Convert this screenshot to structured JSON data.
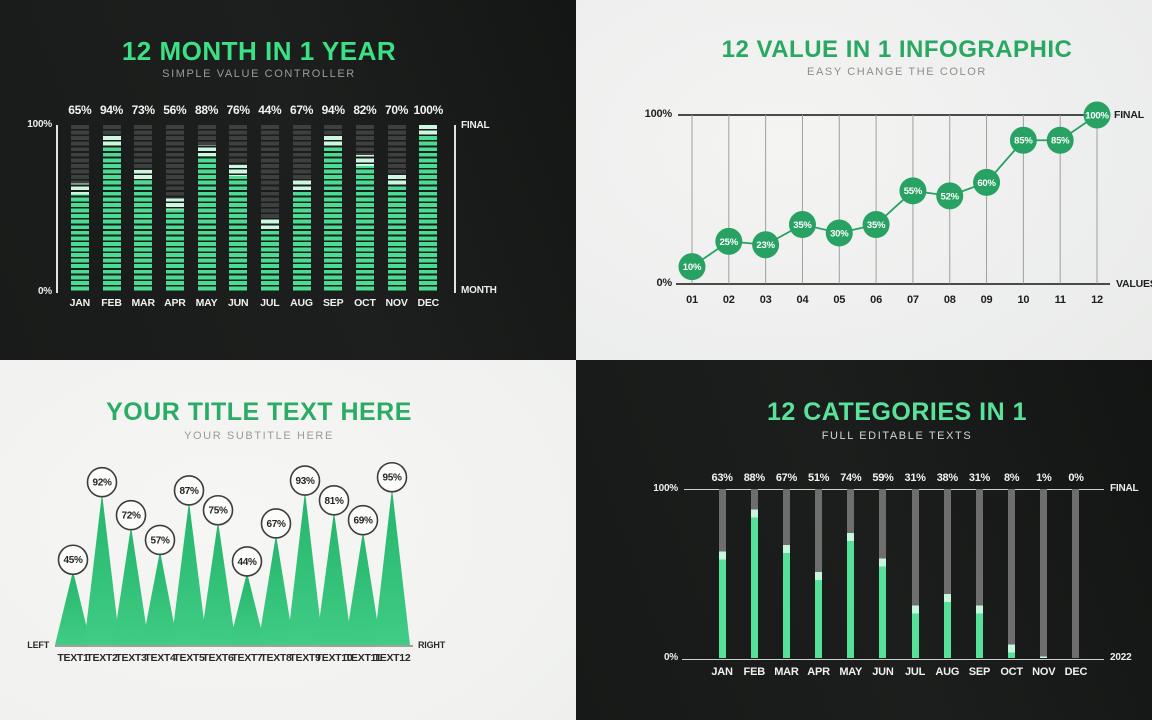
{
  "accent_colors": {
    "bright_green": "#3be184",
    "mid_green": "#28a862",
    "mint_green": "#5ae29b",
    "led_fill": "#4adc92",
    "led_cap": "#cdf8e0",
    "led_empty": "#3e403f",
    "thin_fill": "#55e298",
    "thin_cap": "#c6f7dc",
    "thin_empty": "#6e6e6e",
    "marker_green": "#28a263",
    "triangle_top": "#26b56c",
    "triangle_bottom": "#40cc84"
  },
  "chart_data": [
    {
      "type": "bar",
      "variant": "segmented-led-bars",
      "title": "12 MONTH IN 1 YEAR",
      "subtitle": "SIMPLE VALUE CONTROLLER",
      "categories": [
        "JAN",
        "FEB",
        "MAR",
        "APR",
        "MAY",
        "JUN",
        "JUL",
        "AUG",
        "SEP",
        "OCT",
        "NOV",
        "DEC"
      ],
      "values": [
        65,
        94,
        73,
        56,
        88,
        76,
        44,
        67,
        94,
        82,
        70,
        100
      ],
      "value_suffix": "%",
      "ylim": [
        0,
        100
      ],
      "y_axis": {
        "top": "100%",
        "bottom": "0%"
      },
      "right_axis": {
        "top": "FINAL",
        "bottom": "MONTH"
      },
      "grid": "none",
      "legend": "none"
    },
    {
      "type": "line",
      "variant": "circle-value-markers",
      "title": "12 VALUE IN 1 INFOGRAPHIC",
      "subtitle": "EASY CHANGE THE COLOR",
      "categories": [
        "01",
        "02",
        "03",
        "04",
        "05",
        "06",
        "07",
        "08",
        "09",
        "10",
        "11",
        "12"
      ],
      "values": [
        10,
        25,
        23,
        35,
        30,
        35,
        55,
        52,
        60,
        85,
        85,
        100
      ],
      "value_suffix": "%",
      "ylim": [
        0,
        100
      ],
      "y_axis": {
        "top": "100%",
        "bottom": "0%"
      },
      "right_axis": {
        "top": "FINAL",
        "bottom": "VALUES"
      },
      "grid": "vertical",
      "legend": "none"
    },
    {
      "type": "area",
      "variant": "triangle-peaks",
      "title": "YOUR TITLE TEXT HERE",
      "subtitle": "YOUR SUBTITLE HERE",
      "categories": [
        "TEXT1",
        "TEXT2",
        "TEXT3",
        "TEXT4",
        "TEXT5",
        "TEXT6",
        "TEXT7",
        "TEXT8",
        "TEXT9",
        "TEXT10",
        "TEXT11",
        "TEXT12"
      ],
      "values": [
        45,
        92,
        72,
        57,
        87,
        75,
        44,
        67,
        93,
        81,
        69,
        95
      ],
      "value_suffix": "%",
      "ylim": [
        0,
        100
      ],
      "baseline_labels": {
        "left": "LEFT",
        "right": "RIGHT"
      },
      "grid": "none",
      "legend": "none"
    },
    {
      "type": "bar",
      "variant": "thin-bars",
      "title": "12 CATEGORIES IN 1",
      "subtitle": "FULL EDITABLE TEXTS",
      "categories": [
        "JAN",
        "FEB",
        "MAR",
        "APR",
        "MAY",
        "JUN",
        "JUL",
        "AUG",
        "SEP",
        "OCT",
        "NOV",
        "DEC"
      ],
      "values": [
        63,
        88,
        67,
        51,
        74,
        59,
        31,
        38,
        31,
        8,
        1,
        0
      ],
      "value_suffix": "%",
      "ylim": [
        0,
        100
      ],
      "y_axis": {
        "top": "100%",
        "bottom": "0%"
      },
      "right_axis": {
        "top": "FINAL",
        "bottom": "2022"
      },
      "grid": "none",
      "legend": "none"
    }
  ]
}
